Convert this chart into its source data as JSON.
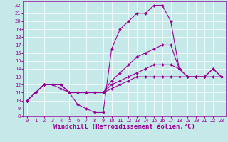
{
  "xlabel": "Windchill (Refroidissement éolien,°C)",
  "background_color": "#c5e8e8",
  "line_color": "#990099",
  "xlim": [
    -0.5,
    23.5
  ],
  "ylim": [
    8,
    22.5
  ],
  "xticks": [
    0,
    1,
    2,
    3,
    4,
    5,
    6,
    7,
    8,
    9,
    10,
    11,
    12,
    13,
    14,
    15,
    16,
    17,
    18,
    19,
    20,
    21,
    22,
    23
  ],
  "yticks": [
    8,
    9,
    10,
    11,
    12,
    13,
    14,
    15,
    16,
    17,
    18,
    19,
    20,
    21,
    22
  ],
  "line_arch": {
    "x": [
      0,
      1,
      2,
      3,
      4,
      5,
      6,
      7,
      8,
      9,
      10,
      11,
      12,
      13,
      14,
      15,
      16,
      17,
      18
    ],
    "y": [
      10,
      11,
      12,
      12,
      11.5,
      11,
      9.5,
      9,
      8.5,
      8.5,
      16.5,
      19,
      20,
      21,
      21,
      22,
      22,
      20,
      14
    ]
  },
  "line_upper": {
    "x": [
      0,
      1,
      2,
      3,
      4,
      5,
      6,
      7,
      8,
      9,
      10,
      11,
      12,
      13,
      14,
      15,
      16,
      17,
      18,
      19,
      20,
      21,
      22,
      23
    ],
    "y": [
      10,
      11,
      12,
      12,
      12,
      11,
      11,
      11,
      11,
      11,
      12.5,
      13.5,
      14.5,
      15.5,
      16,
      16.5,
      17,
      17,
      14,
      13,
      13,
      13,
      14,
      13
    ]
  },
  "line_mid": {
    "x": [
      0,
      1,
      2,
      3,
      4,
      5,
      6,
      7,
      8,
      9,
      10,
      11,
      12,
      13,
      14,
      15,
      16,
      17,
      18,
      19,
      20,
      21,
      22,
      23
    ],
    "y": [
      10,
      11,
      12,
      12,
      12,
      11,
      11,
      11,
      11,
      11,
      12,
      12.5,
      13,
      13.5,
      14,
      14.5,
      14.5,
      14.5,
      14,
      13,
      13,
      13,
      14,
      13
    ]
  },
  "line_flat": {
    "x": [
      0,
      1,
      2,
      3,
      4,
      5,
      6,
      7,
      8,
      9,
      10,
      11,
      12,
      13,
      14,
      15,
      16,
      17,
      18,
      19,
      20,
      21,
      22,
      23
    ],
    "y": [
      10,
      11,
      12,
      12,
      12,
      11,
      11,
      11,
      11,
      11,
      11.5,
      12,
      12.5,
      13,
      13,
      13,
      13,
      13,
      13,
      13,
      13,
      13,
      13,
      13
    ]
  },
  "marker": "D",
  "markersize": 2.0,
  "linewidth": 0.8,
  "xlabel_fontsize": 6.5,
  "tick_fontsize": 5.0
}
